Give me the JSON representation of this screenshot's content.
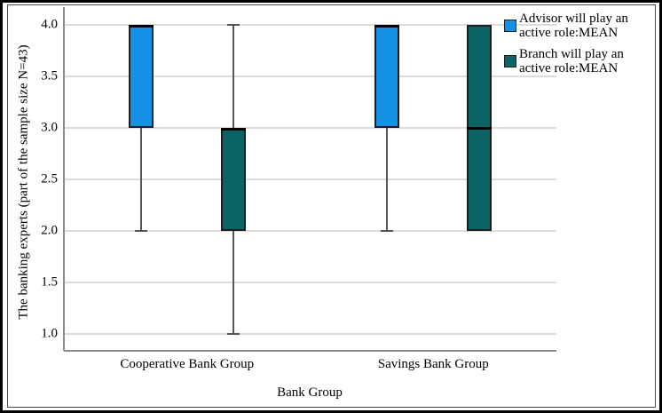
{
  "chart_data": {
    "type": "boxplot",
    "title": "",
    "xlabel": "Bank Group",
    "ylabel": "The banking experts (part of the sample size N=43)",
    "categories": [
      "Cooperative Bank Group",
      "Savings Bank Group"
    ],
    "yticks": [
      4.0,
      3.5,
      3.0,
      2.5,
      2.0,
      1.5,
      1.0
    ],
    "ylim": [
      0.85,
      4.17
    ],
    "grid": true,
    "legend_position": "top-right",
    "series": [
      {
        "name": "Advisor will play an active role:MEAN",
        "color": "#1591E6",
        "boxes": [
          {
            "category": "Cooperative Bank Group",
            "box_low": 3.0,
            "box_high": 4.0,
            "median": 4.0,
            "whisker_low": 2.0,
            "whisker_high": null
          },
          {
            "category": "Savings Bank Group",
            "box_low": 3.0,
            "box_high": 4.0,
            "median": 4.0,
            "whisker_low": 2.0,
            "whisker_high": null
          }
        ]
      },
      {
        "name": "Branch will play an active role:MEAN",
        "color": "#0B6363",
        "boxes": [
          {
            "category": "Cooperative Bank Group",
            "box_low": 2.0,
            "box_high": 3.0,
            "median": 3.0,
            "whisker_low": 1.0,
            "whisker_high": 4.0
          },
          {
            "category": "Savings Bank Group",
            "box_low": 2.0,
            "box_high": 4.0,
            "median": 3.0,
            "whisker_low": null,
            "whisker_high": null
          }
        ]
      }
    ],
    "style_colors": {
      "gridline": "#DCDCDC",
      "axis": "#8C8C8C",
      "whisker": "#555555",
      "box_border": "#1F1F1F",
      "median": "#000000",
      "frame_outer": "#000000",
      "frame_inner": "#4A4A4A"
    }
  }
}
